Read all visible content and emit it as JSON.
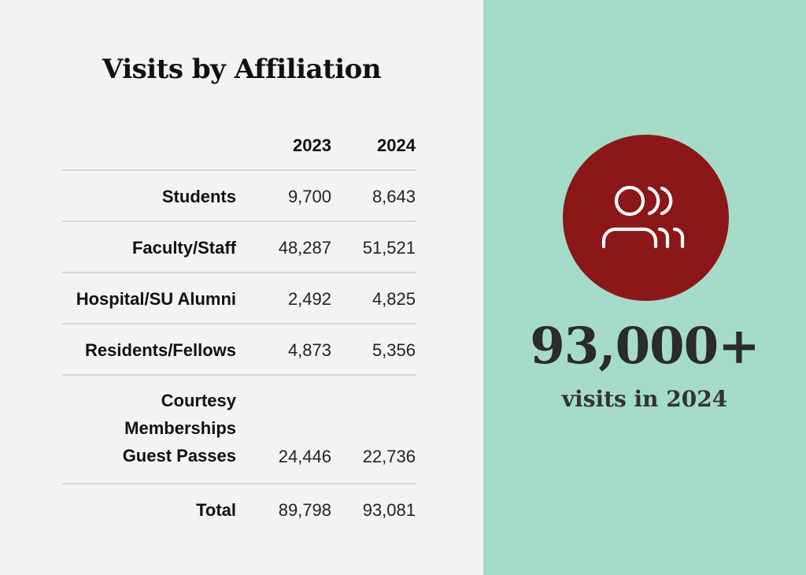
{
  "title": "Visits by Affiliation",
  "colors": {
    "left_background": "#f3f3f3",
    "right_background": "#a5dbc9",
    "badge_fill": "#8b1718",
    "icon_stroke": "#ffffff"
  },
  "table": {
    "columns": [
      "",
      "2023",
      "2024"
    ],
    "rows": [
      {
        "label": [
          "Students"
        ],
        "y2023": "9,700",
        "y2024": "8,643"
      },
      {
        "label": [
          "Faculty/Staff"
        ],
        "y2023": "48,287",
        "y2024": "51,521"
      },
      {
        "label": [
          "Hospital/SU Alumni"
        ],
        "y2023": "2,492",
        "y2024": "4,825"
      },
      {
        "label": [
          "Residents/Fellows"
        ],
        "y2023": "4,873",
        "y2024": "5,356"
      },
      {
        "label": [
          "Courtesy",
          "Memberships",
          "Guest Passes"
        ],
        "y2023": "24,446",
        "y2024": "22,736"
      },
      {
        "label": [
          "Total"
        ],
        "y2023": "89,798",
        "y2024": "93,081"
      }
    ]
  },
  "highlight": {
    "icon": "users-group-icon",
    "number": "93,000+",
    "caption": "visits in 2024"
  }
}
